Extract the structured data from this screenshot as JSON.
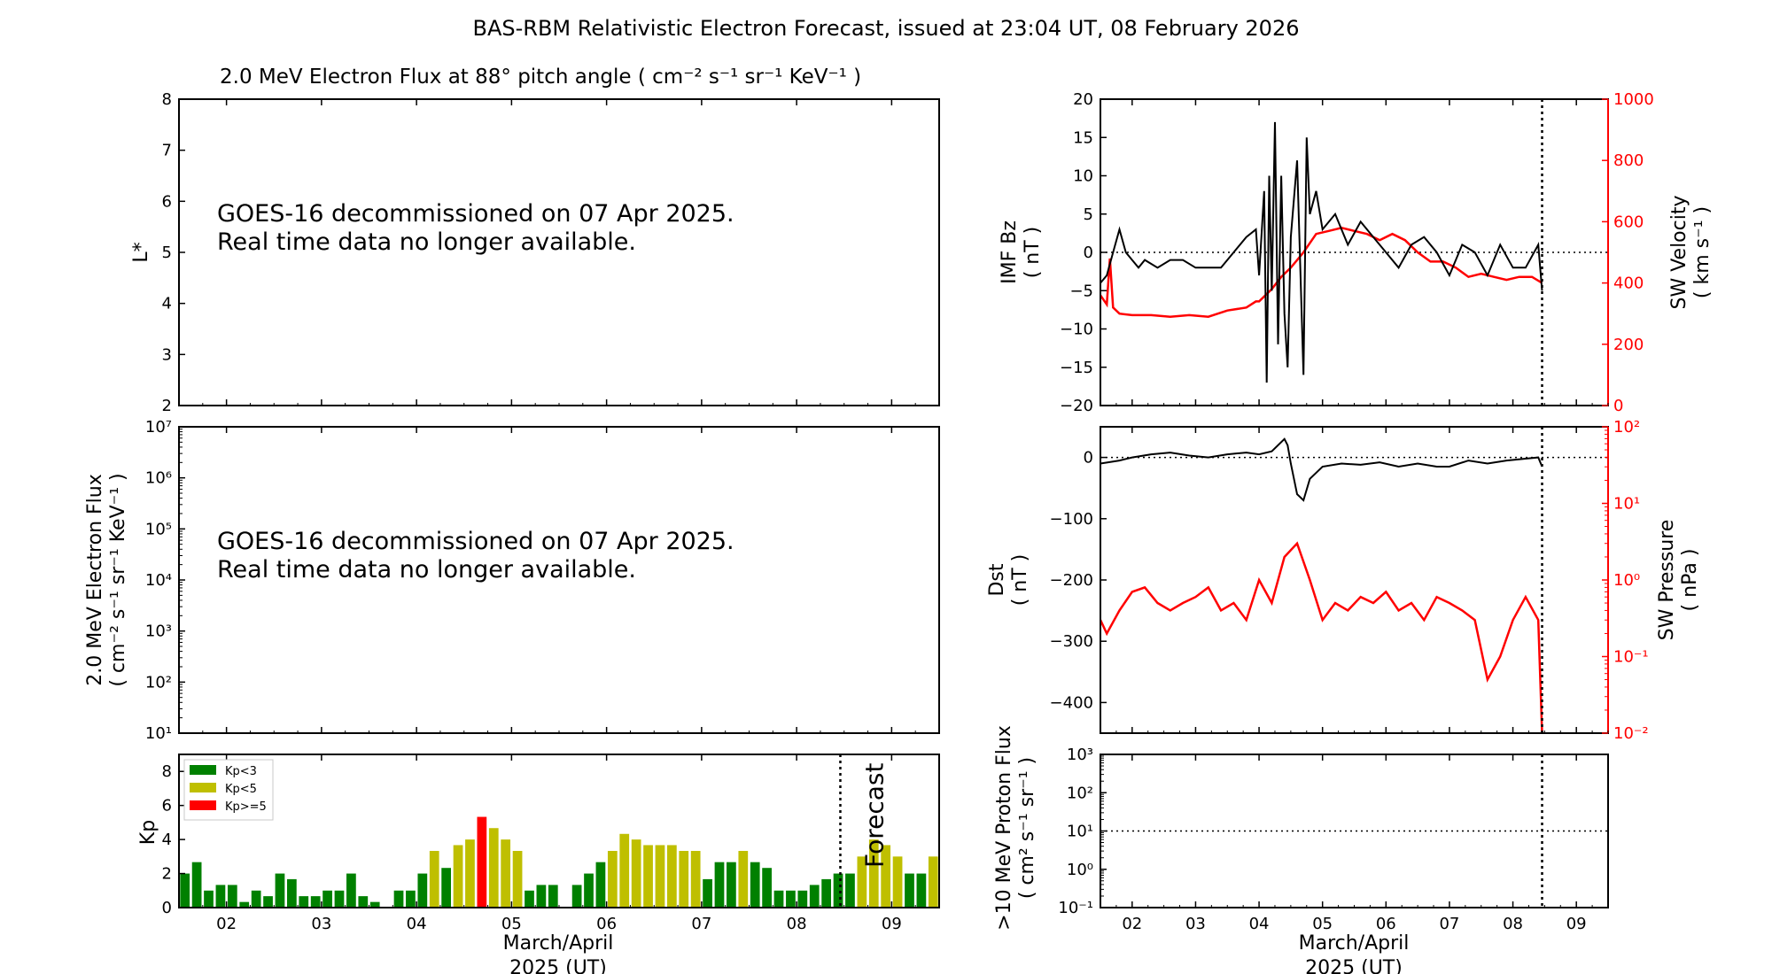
{
  "page": {
    "title": "BAS-RBM Relativistic Electron Forecast, issued at 23:04 UT, 08 February 2026"
  },
  "colors": {
    "kp_low": "#008000",
    "kp_mid": "#bfbf00",
    "kp_high": "#ff0000",
    "sw": "#ff0000",
    "axis": "#000000",
    "forecast_text": "#c0c0c0"
  },
  "chart_data": [
    {
      "id": "lstar",
      "type": "heatmap",
      "title": "2.0 MeV Electron Flux at 88° pitch angle ( cm⁻² s⁻¹ sr⁻¹ KeV⁻¹ )",
      "ylabel": "L*",
      "ylim": [
        2,
        8
      ],
      "yticks": [
        "2",
        "3",
        "4",
        "5",
        "6",
        "7",
        "8"
      ],
      "xlim": [
        1.5,
        9.5
      ],
      "message": [
        "GOES-16 decommissioned on 07 Apr 2025.",
        "Real time data no longer available."
      ]
    },
    {
      "id": "flux",
      "type": "line",
      "ylabel": [
        "2.0 MeV Electron Flux",
        "( cm⁻² s⁻¹ sr⁻¹ KeV⁻¹ )"
      ],
      "yscale": "log",
      "ylim": [
        10,
        10000000
      ],
      "yticks": [
        "10¹",
        "10²",
        "10³",
        "10⁴",
        "10⁵",
        "10⁶",
        "10⁷"
      ],
      "message": [
        "GOES-16 decommissioned on 07 Apr 2025.",
        "Real time data no longer available."
      ]
    },
    {
      "id": "kp",
      "type": "bar",
      "ylabel": "Kp",
      "ylim": [
        0,
        9
      ],
      "yticks": [
        "0",
        "2",
        "4",
        "6",
        "8"
      ],
      "xlim": [
        1.5,
        9.5
      ],
      "xticks": [
        "02",
        "03",
        "04",
        "05",
        "06",
        "07",
        "08",
        "09"
      ],
      "xlabel": [
        "March/April",
        "2025 (UT)"
      ],
      "forecast_start": 8.46,
      "forecast_label": "Forecast",
      "legend": [
        "Kp<3",
        "Kp<5",
        "Kp>=5"
      ],
      "legend_position": "upper-left",
      "bar_width_days": 0.1,
      "x": [
        1.5625,
        1.6875,
        1.8125,
        1.9375,
        2.0625,
        2.1875,
        2.3125,
        2.4375,
        2.5625,
        2.6875,
        2.8125,
        2.9375,
        3.0625,
        3.1875,
        3.3125,
        3.4375,
        3.5625,
        3.6875,
        3.8125,
        3.9375,
        4.0625,
        4.1875,
        4.3125,
        4.4375,
        4.5625,
        4.6875,
        4.8125,
        4.9375,
        5.0625,
        5.1875,
        5.3125,
        5.4375,
        5.5625,
        5.6875,
        5.8125,
        5.9375,
        6.0625,
        6.1875,
        6.3125,
        6.4375,
        6.5625,
        6.6875,
        6.8125,
        6.9375,
        7.0625,
        7.1875,
        7.3125,
        7.4375,
        7.5625,
        7.6875,
        7.8125,
        7.9375,
        8.0625,
        8.1875,
        8.3125,
        8.4375,
        8.5625,
        8.6875,
        8.8125,
        8.9375,
        9.0625,
        9.1875,
        9.3125,
        9.4375
      ],
      "values": [
        2.0,
        2.67,
        1.0,
        1.33,
        1.33,
        0.33,
        1.0,
        0.67,
        2.0,
        1.67,
        0.67,
        0.67,
        1.0,
        1.0,
        2.0,
        0.67,
        0.33,
        0.0,
        1.0,
        1.0,
        2.0,
        3.33,
        2.33,
        3.67,
        4.0,
        5.33,
        4.67,
        4.0,
        3.33,
        1.0,
        1.33,
        1.33,
        0.0,
        1.33,
        2.0,
        2.67,
        3.33,
        4.33,
        4.0,
        3.67,
        3.67,
        3.67,
        3.33,
        3.33,
        1.67,
        2.67,
        2.67,
        3.33,
        2.67,
        2.33,
        1.0,
        1.0,
        1.0,
        1.33,
        1.67,
        2.0,
        2.0,
        3.0,
        4.0,
        3.67,
        3.0,
        2.0,
        2.0,
        3.0
      ]
    },
    {
      "id": "imf",
      "type": "line",
      "ylabel": [
        "IMF Bz",
        "( nT )"
      ],
      "ylabel_right": [
        "SW Velocity",
        "( km s⁻¹ )"
      ],
      "ylim": [
        -20,
        20
      ],
      "yticks": [
        "−20",
        "−15",
        "−10",
        "−5",
        "0",
        "5",
        "10",
        "15",
        "20"
      ],
      "ylim_right": [
        0,
        1000
      ],
      "yticks_right": [
        "0",
        "200",
        "400",
        "600",
        "800",
        "1000"
      ],
      "xlim": [
        1.5,
        9.5
      ],
      "zero_line": 0,
      "issue_line": 8.46,
      "series": [
        {
          "axis": "left",
          "x": [
            1.5,
            1.6,
            1.7,
            1.8,
            1.9,
            2.0,
            2.1,
            2.2,
            2.4,
            2.6,
            2.8,
            3.0,
            3.2,
            3.4,
            3.6,
            3.8,
            3.95,
            4.0,
            4.08,
            4.12,
            4.16,
            4.2,
            4.25,
            4.3,
            4.35,
            4.4,
            4.45,
            4.5,
            4.6,
            4.7,
            4.75,
            4.8,
            4.9,
            5.0,
            5.2,
            5.4,
            5.6,
            5.8,
            6.0,
            6.2,
            6.4,
            6.6,
            6.8,
            7.0,
            7.2,
            7.4,
            7.6,
            7.8,
            8.0,
            8.2,
            8.4,
            8.46
          ],
          "values": [
            -4,
            -3,
            0,
            3,
            0,
            -1,
            -2,
            -1,
            -2,
            -1,
            -1,
            -2,
            -2,
            -2,
            0,
            2,
            3,
            -3,
            8,
            -17,
            10,
            -5,
            17,
            -12,
            10,
            -8,
            -15,
            2,
            12,
            -16,
            15,
            5,
            8,
            3,
            5,
            1,
            4,
            2,
            0,
            -2,
            1,
            2,
            0,
            -3,
            1,
            0,
            -3,
            1,
            -2,
            -2,
            1,
            -5
          ]
        },
        {
          "axis": "right",
          "x": [
            1.5,
            1.6,
            1.65,
            1.7,
            1.8,
            2.0,
            2.3,
            2.6,
            2.9,
            3.2,
            3.5,
            3.8,
            3.95,
            4.0,
            4.2,
            4.35,
            4.5,
            4.7,
            4.9,
            5.1,
            5.3,
            5.5,
            5.7,
            5.9,
            6.1,
            6.3,
            6.5,
            6.7,
            6.9,
            7.1,
            7.3,
            7.5,
            7.7,
            7.9,
            8.1,
            8.3,
            8.46
          ],
          "values": [
            360,
            330,
            480,
            320,
            300,
            295,
            295,
            290,
            295,
            290,
            310,
            320,
            340,
            340,
            380,
            420,
            450,
            500,
            560,
            570,
            580,
            570,
            560,
            540,
            560,
            540,
            500,
            470,
            470,
            450,
            420,
            430,
            420,
            410,
            420,
            420,
            400
          ]
        }
      ]
    },
    {
      "id": "dst",
      "type": "line",
      "ylabel": [
        "Dst",
        "( nT )"
      ],
      "ylabel_right": [
        "SW Pressure",
        "( nPa )"
      ],
      "ylim": [
        -450,
        50
      ],
      "yticks": [
        "−400",
        "−300",
        "−200",
        "−100",
        "0"
      ],
      "yscale_right": "log",
      "ylim_right": [
        0.01,
        100
      ],
      "yticks_right": [
        "10⁻²",
        "10⁻¹",
        "10⁰",
        "10¹",
        "10²"
      ],
      "xlim": [
        1.5,
        9.5
      ],
      "zero_line": 0,
      "issue_line": 8.46,
      "series": [
        {
          "axis": "left",
          "x": [
            1.5,
            1.8,
            2.0,
            2.3,
            2.6,
            2.9,
            3.2,
            3.5,
            3.8,
            4.0,
            4.2,
            4.4,
            4.45,
            4.5,
            4.6,
            4.7,
            4.8,
            5.0,
            5.3,
            5.6,
            5.9,
            6.2,
            6.5,
            6.8,
            7.0,
            7.3,
            7.6,
            7.9,
            8.2,
            8.4,
            8.46
          ],
          "values": [
            -10,
            -5,
            0,
            5,
            8,
            3,
            0,
            5,
            8,
            5,
            10,
            30,
            20,
            -10,
            -60,
            -70,
            -35,
            -15,
            -10,
            -12,
            -8,
            -15,
            -10,
            -15,
            -15,
            -5,
            -10,
            -5,
            -2,
            0,
            -15
          ]
        },
        {
          "axis": "right",
          "x": [
            1.5,
            1.6,
            1.8,
            2.0,
            2.2,
            2.4,
            2.6,
            2.8,
            3.0,
            3.2,
            3.4,
            3.6,
            3.8,
            4.0,
            4.2,
            4.4,
            4.6,
            4.8,
            5.0,
            5.2,
            5.4,
            5.6,
            5.8,
            6.0,
            6.2,
            6.4,
            6.6,
            6.8,
            7.0,
            7.2,
            7.4,
            7.6,
            7.8,
            8.0,
            8.2,
            8.4,
            8.46
          ],
          "values": [
            0.3,
            0.2,
            0.4,
            0.7,
            0.8,
            0.5,
            0.4,
            0.5,
            0.6,
            0.8,
            0.4,
            0.5,
            0.3,
            1.0,
            0.5,
            2.0,
            3.0,
            1.0,
            0.3,
            0.5,
            0.4,
            0.6,
            0.5,
            0.7,
            0.4,
            0.5,
            0.3,
            0.6,
            0.5,
            0.4,
            0.3,
            0.05,
            0.1,
            0.3,
            0.6,
            0.3,
            0.01
          ]
        }
      ]
    },
    {
      "id": "proton",
      "type": "line",
      "ylabel": [
        ">10 MeV Proton Flux",
        "( cm² s⁻¹ sr⁻¹ )"
      ],
      "yscale": "log",
      "ylim": [
        0.1,
        1000
      ],
      "yticks": [
        "10⁻¹",
        "10⁰",
        "10¹",
        "10²",
        "10³"
      ],
      "xlim": [
        1.5,
        9.5
      ],
      "xticks": [
        "02",
        "03",
        "04",
        "05",
        "06",
        "07",
        "08",
        "09"
      ],
      "xlabel": [
        "March/April",
        "2025 (UT)"
      ],
      "threshold": 10,
      "issue_line": 8.46
    }
  ]
}
